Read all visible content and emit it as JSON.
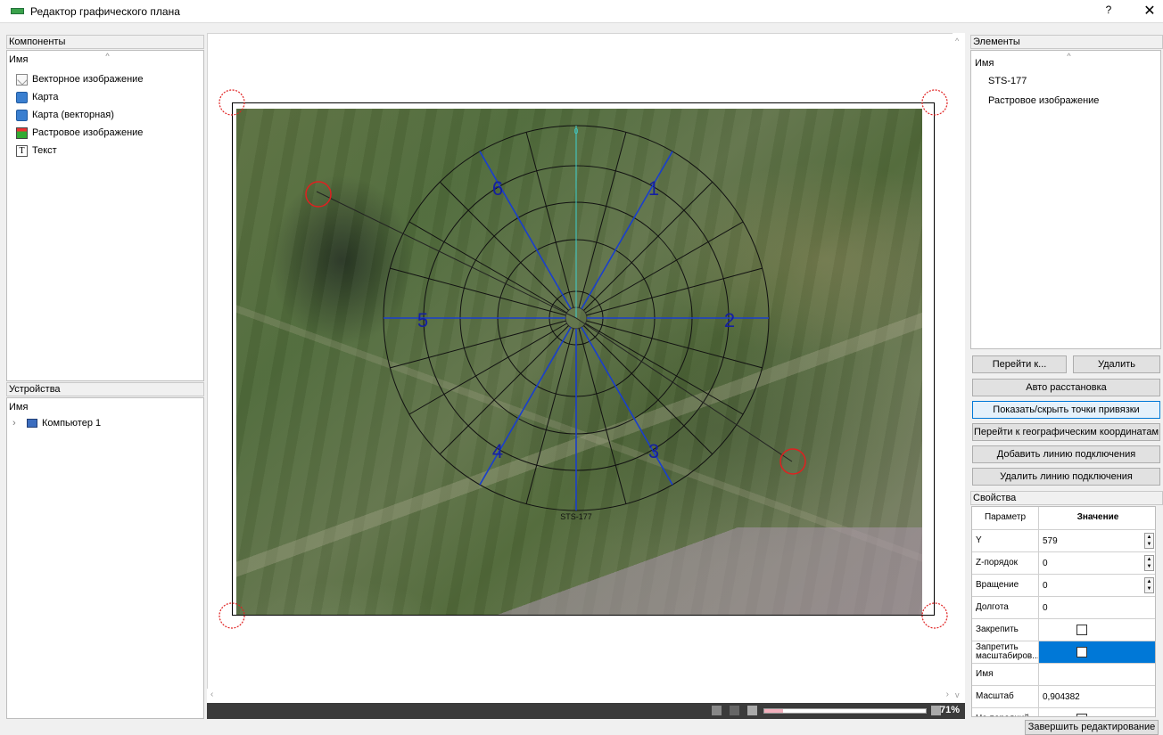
{
  "window": {
    "title": "Редактор графического плана",
    "help": "?",
    "close": "✕"
  },
  "components": {
    "header": "Компоненты",
    "column": "Имя",
    "items": [
      {
        "label": "Векторное изображение",
        "icon": "vector-image-icon"
      },
      {
        "label": "Карта",
        "icon": "map-icon"
      },
      {
        "label": "Карта (векторная)",
        "icon": "vector-map-icon"
      },
      {
        "label": "Растровое изображение",
        "icon": "raster-image-icon"
      },
      {
        "label": "Текст",
        "icon": "text-icon"
      }
    ]
  },
  "devices": {
    "header": "Устройства",
    "column": "Имя",
    "items": [
      {
        "label": "Компьютер 1",
        "icon": "computer-icon"
      }
    ]
  },
  "canvas": {
    "zoom": "71%",
    "zoom_fraction": 0.71,
    "plan_label": "STS-177",
    "sector_numbers": [
      "1",
      "2",
      "3",
      "4",
      "5",
      "6"
    ],
    "north_label": "0"
  },
  "elements": {
    "header": "Элементы",
    "column": "Имя",
    "items": [
      "STS-177",
      "Растровое изображение"
    ]
  },
  "buttons": {
    "goto": "Перейти к...",
    "delete": "Удалить",
    "auto_arrange": "Авто расстановка",
    "toggle_points": "Показать/скрыть точки привязки",
    "goto_geo": "Перейти к географическим координатам",
    "add_line": "Добавить линию подключения",
    "remove_line": "Удалить линию подключения",
    "finish": "Завершить редактирование"
  },
  "properties": {
    "header": "Свойства",
    "col_param": "Параметр",
    "col_value": "Значение",
    "rows": [
      {
        "name": "Y",
        "value": "579",
        "spin": true
      },
      {
        "name": "Z-порядок",
        "value": "0",
        "spin": true
      },
      {
        "name": "Вращение",
        "value": "0",
        "spin": true
      },
      {
        "name": "Долгота",
        "value": "0"
      },
      {
        "name": "Закрепить",
        "value": "",
        "checkbox": true
      },
      {
        "name": "Запретить масштабиров...",
        "value": "",
        "checkbox": true,
        "selected": true
      },
      {
        "name": "Имя",
        "value": ""
      },
      {
        "name": "Масштаб",
        "value": "0,904382"
      },
      {
        "name": "На передний",
        "value": "",
        "checkbox": true
      }
    ]
  },
  "colors": {
    "accent": "#0078d7",
    "selected_row": "#0078d7",
    "anchor": "#e02020",
    "spoke_blue": "#1a3fcc"
  }
}
